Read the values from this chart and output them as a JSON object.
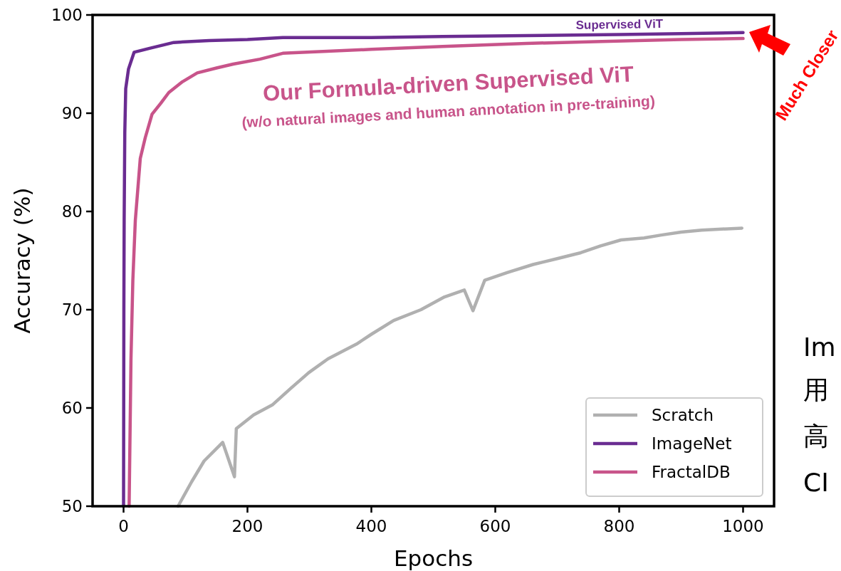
{
  "chart_data": {
    "type": "line",
    "xlabel": "Epochs",
    "ylabel": "Accuracy (%)",
    "xlim": [
      -50,
      1050
    ],
    "ylim": [
      50,
      100
    ],
    "xticks": [
      0,
      200,
      400,
      600,
      800,
      1000
    ],
    "yticks": [
      50,
      60,
      70,
      80,
      90,
      100
    ],
    "legend": "bottom right",
    "series": [
      {
        "name": "Scratch",
        "color": "#b0b0b0",
        "x": [
          88,
          110,
          130,
          160,
          179,
          182,
          210,
          240,
          270,
          299,
          330,
          376,
          400,
          436,
          480,
          518,
          550,
          564,
          583,
          620,
          661,
          700,
          738,
          770,
          803,
          840,
          868,
          900,
          933,
          998
        ],
        "values": [
          50,
          52.5,
          54.6,
          56.5,
          53.0,
          57.9,
          59.3,
          60.3,
          62.0,
          63.6,
          65.0,
          66.5,
          67.5,
          68.9,
          70.0,
          71.3,
          72.0,
          69.9,
          73.0,
          73.8,
          74.6,
          75.2,
          75.8,
          76.5,
          77.1,
          77.3,
          77.6,
          77.9,
          78.1,
          78.3
        ]
      },
      {
        "name": "ImageNet",
        "color": "#6a2c91",
        "x": [
          0,
          0.5,
          1,
          2,
          3.5,
          8,
          17,
          42,
          81,
          138,
          200,
          257,
          400,
          515,
          650,
          800,
          900,
          1000
        ],
        "values": [
          50,
          70,
          79.1,
          88,
          92.5,
          94.5,
          96.2,
          96.6,
          97.2,
          97.4,
          97.5,
          97.7,
          97.7,
          97.8,
          97.9,
          98.0,
          98.1,
          98.2
        ]
      },
      {
        "name": "FractalDB",
        "color": "#c8548a",
        "x": [
          9,
          12,
          15,
          19,
          27,
          35,
          46,
          60,
          73,
          95,
          119,
          150,
          177,
          220,
          257,
          400,
          515,
          650,
          772,
          900,
          1000
        ],
        "values": [
          50,
          65,
          73,
          79.1,
          85.4,
          87.5,
          89.9,
          91.0,
          92.1,
          93.2,
          94.1,
          94.6,
          95.0,
          95.5,
          96.1,
          96.5,
          96.8,
          97.1,
          97.3,
          97.5,
          97.6
        ]
      }
    ],
    "annotations": [
      "Supervised ViT",
      "Our Formula-driven Supervised ViT",
      "(w/o natural images and human annotation in pre-training)",
      "Much Closer",
      "Im",
      "用",
      "高",
      "CI"
    ]
  }
}
